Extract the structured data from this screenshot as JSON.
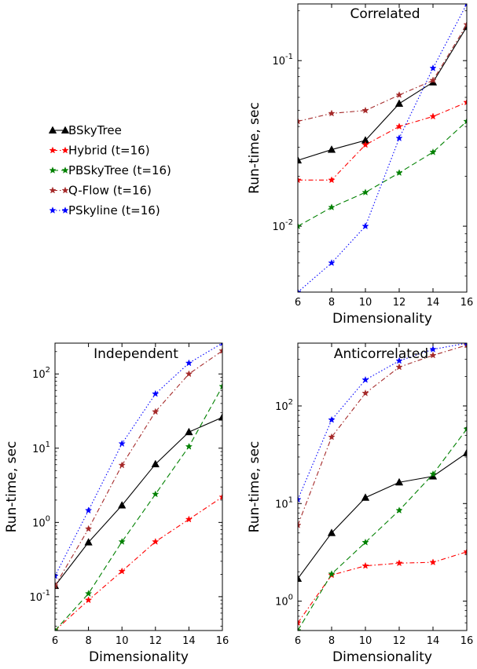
{
  "chart_data": [
    {
      "type": "line",
      "title": "Correlated",
      "xlabel": "Dimensionality",
      "ylabel": "Run-time, sec",
      "yscale": "log",
      "xlim": [
        6,
        16
      ],
      "ylim": [
        0.004,
        0.22
      ],
      "x_ticks": [
        6,
        8,
        10,
        12,
        14,
        16
      ],
      "y_ticks": [
        {
          "value": 0.01,
          "base": "10",
          "exp": "-2"
        },
        {
          "value": 0.1,
          "base": "10",
          "exp": "-1"
        }
      ],
      "series": [
        {
          "name": "BSkyTree",
          "color": "#000000",
          "style": "solid",
          "marker": "triangle",
          "points": [
            [
              6,
              0.025
            ],
            [
              8,
              0.029
            ],
            [
              10,
              0.033
            ],
            [
              12,
              0.055
            ],
            [
              14,
              0.074
            ],
            [
              16,
              0.16
            ]
          ]
        },
        {
          "name": "Hybrid (t=16)",
          "color": "#ff0000",
          "style": "dashdot",
          "marker": "star",
          "points": [
            [
              6,
              0.019
            ],
            [
              8,
              0.019
            ],
            [
              10,
              0.031
            ],
            [
              12,
              0.04
            ],
            [
              14,
              0.046
            ],
            [
              16,
              0.056
            ]
          ]
        },
        {
          "name": "PBSkyTree (t=16)",
          "color": "#008000",
          "style": "dashed",
          "marker": "star",
          "points": [
            [
              6,
              0.01
            ],
            [
              8,
              0.013
            ],
            [
              10,
              0.016
            ],
            [
              12,
              0.021
            ],
            [
              14,
              0.028
            ],
            [
              16,
              0.043
            ]
          ]
        },
        {
          "name": "Q-Flow (t=16)",
          "color": "#a52a2a",
          "style": "dashdot",
          "marker": "star",
          "points": [
            [
              6,
              0.043
            ],
            [
              8,
              0.048
            ],
            [
              10,
              0.05
            ],
            [
              12,
              0.062
            ],
            [
              14,
              0.076
            ],
            [
              16,
              0.165
            ]
          ]
        },
        {
          "name": "PSkyline (t=16)",
          "color": "#0000ff",
          "style": "dotted",
          "marker": "star",
          "points": [
            [
              6,
              0.004
            ],
            [
              8,
              0.006
            ],
            [
              10,
              0.01
            ],
            [
              12,
              0.034
            ],
            [
              14,
              0.09
            ],
            [
              16,
              0.22
            ]
          ]
        }
      ]
    },
    {
      "type": "line",
      "title": "Independent",
      "xlabel": "Dimensionality",
      "ylabel": "Run-time, sec",
      "yscale": "log",
      "xlim": [
        6,
        16
      ],
      "ylim": [
        0.035,
        260
      ],
      "x_ticks": [
        6,
        8,
        10,
        12,
        14,
        16
      ],
      "y_ticks": [
        {
          "value": 0.1,
          "base": "10",
          "exp": "-1"
        },
        {
          "value": 1,
          "base": "10",
          "exp": "0"
        },
        {
          "value": 10,
          "base": "10",
          "exp": "1"
        },
        {
          "value": 100,
          "base": "10",
          "exp": "2"
        }
      ],
      "series": [
        {
          "name": "BSkyTree",
          "color": "#000000",
          "style": "solid",
          "marker": "triangle",
          "points": [
            [
              6,
              0.14
            ],
            [
              8,
              0.54
            ],
            [
              10,
              1.7
            ],
            [
              12,
              6.1
            ],
            [
              14,
              16.5
            ],
            [
              16,
              26
            ]
          ]
        },
        {
          "name": "Hybrid (t=16)",
          "color": "#ff0000",
          "style": "dashdot",
          "marker": "star",
          "points": [
            [
              6,
              0.035
            ],
            [
              8,
              0.09
            ],
            [
              10,
              0.22
            ],
            [
              12,
              0.55
            ],
            [
              14,
              1.1
            ],
            [
              16,
              2.2
            ]
          ]
        },
        {
          "name": "PBSkyTree (t=16)",
          "color": "#008000",
          "style": "dashed",
          "marker": "star",
          "points": [
            [
              6,
              0.035
            ],
            [
              8,
              0.11
            ],
            [
              10,
              0.55
            ],
            [
              12,
              2.4
            ],
            [
              14,
              10.5
            ],
            [
              16,
              68
            ]
          ]
        },
        {
          "name": "Q-Flow (t=16)",
          "color": "#a52a2a",
          "style": "dashdot",
          "marker": "star",
          "points": [
            [
              6,
              0.14
            ],
            [
              8,
              0.82
            ],
            [
              10,
              5.9
            ],
            [
              12,
              31
            ],
            [
              14,
              100
            ],
            [
              16,
              205
            ]
          ]
        },
        {
          "name": "PSkyline (t=16)",
          "color": "#0000ff",
          "style": "dotted",
          "marker": "star",
          "points": [
            [
              6,
              0.19
            ],
            [
              8,
              1.45
            ],
            [
              10,
              11.5
            ],
            [
              12,
              54
            ],
            [
              14,
              140
            ],
            [
              16,
              260
            ]
          ]
        }
      ]
    },
    {
      "type": "line",
      "title": "Anticorrelated",
      "xlabel": "Dimensionality",
      "ylabel": "Run-time, sec",
      "yscale": "log",
      "xlim": [
        6,
        16
      ],
      "ylim": [
        0.5,
        440
      ],
      "x_ticks": [
        6,
        8,
        10,
        12,
        14,
        16
      ],
      "y_ticks": [
        {
          "value": 1,
          "base": "10",
          "exp": "0"
        },
        {
          "value": 10,
          "base": "10",
          "exp": "1"
        },
        {
          "value": 100,
          "base": "10",
          "exp": "2"
        }
      ],
      "series": [
        {
          "name": "BSkyTree",
          "color": "#000000",
          "style": "solid",
          "marker": "triangle",
          "points": [
            [
              6,
              1.7
            ],
            [
              8,
              5.0
            ],
            [
              10,
              11.5
            ],
            [
              12,
              16.5
            ],
            [
              14,
              19
            ],
            [
              16,
              33
            ]
          ]
        },
        {
          "name": "Hybrid (t=16)",
          "color": "#ff0000",
          "style": "dashdot",
          "marker": "star",
          "points": [
            [
              6,
              0.6
            ],
            [
              8,
              1.85
            ],
            [
              10,
              2.3
            ],
            [
              12,
              2.45
            ],
            [
              14,
              2.5
            ],
            [
              16,
              3.2
            ]
          ]
        },
        {
          "name": "PBSkyTree (t=16)",
          "color": "#008000",
          "style": "dashed",
          "marker": "star",
          "points": [
            [
              6,
              0.5
            ],
            [
              8,
              1.9
            ],
            [
              10,
              4.0
            ],
            [
              12,
              8.5
            ],
            [
              14,
              20
            ],
            [
              16,
              58
            ]
          ]
        },
        {
          "name": "Q-Flow (t=16)",
          "color": "#a52a2a",
          "style": "dashdot",
          "marker": "star",
          "points": [
            [
              6,
              6.0
            ],
            [
              8,
              48
            ],
            [
              10,
              135
            ],
            [
              12,
              250
            ],
            [
              14,
              330
            ],
            [
              16,
              420
            ]
          ]
        },
        {
          "name": "PSkyline (t=16)",
          "color": "#0000ff",
          "style": "dotted",
          "marker": "star",
          "points": [
            [
              6,
              11
            ],
            [
              8,
              72
            ],
            [
              10,
              185
            ],
            [
              12,
              290
            ],
            [
              14,
              380
            ],
            [
              16,
              440
            ]
          ]
        }
      ]
    }
  ],
  "legend": {
    "items": [
      {
        "label": "BSkyTree",
        "color": "#000000",
        "style": "solid",
        "marker": "triangle"
      },
      {
        "label": "Hybrid (t=16)",
        "color": "#ff0000",
        "style": "dashdot",
        "marker": "star"
      },
      {
        "label": "PBSkyTree (t=16)",
        "color": "#008000",
        "style": "dashed",
        "marker": "star"
      },
      {
        "label": "Q-Flow (t=16)",
        "color": "#a52a2a",
        "style": "dashdot",
        "marker": "star"
      },
      {
        "label": "PSkyline (t=16)",
        "color": "#0000ff",
        "style": "dotted",
        "marker": "star"
      }
    ]
  }
}
